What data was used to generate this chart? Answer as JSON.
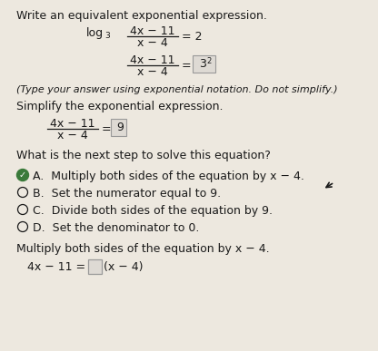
{
  "bg_color": "#ede8df",
  "white_color": "#f8f6f2",
  "text_color": "#1a1a1a",
  "title1": "Write an equivalent exponential expression.",
  "line1_num": "4x − 11",
  "line1_den": "x − 4",
  "note": "(Type your answer using exponential notation. Do not simplify.)",
  "title2": "Simplify the exponential expression.",
  "line3_num": "4x − 11",
  "line3_den": "x − 4",
  "question": "What is the next step to solve this equation?",
  "optA": "Multiply both sides of the equation by x − 4.",
  "optB": "Set the numerator equal to 9.",
  "optC": "Divide both sides of the equation by 9.",
  "optD": "Set the denominator to 0.",
  "footer_text": "Multiply both sides of the equation by x − 4.",
  "final_left": "4x − 11 =",
  "final_right": "(x − 4)",
  "checkmark_color": "#3a7a3a",
  "box_fill": "#e0ddd8",
  "box_edge": "#999999",
  "highlight_fill": "#dedad4",
  "fig_width": 4.16,
  "fig_height": 3.87,
  "dpi": 100
}
